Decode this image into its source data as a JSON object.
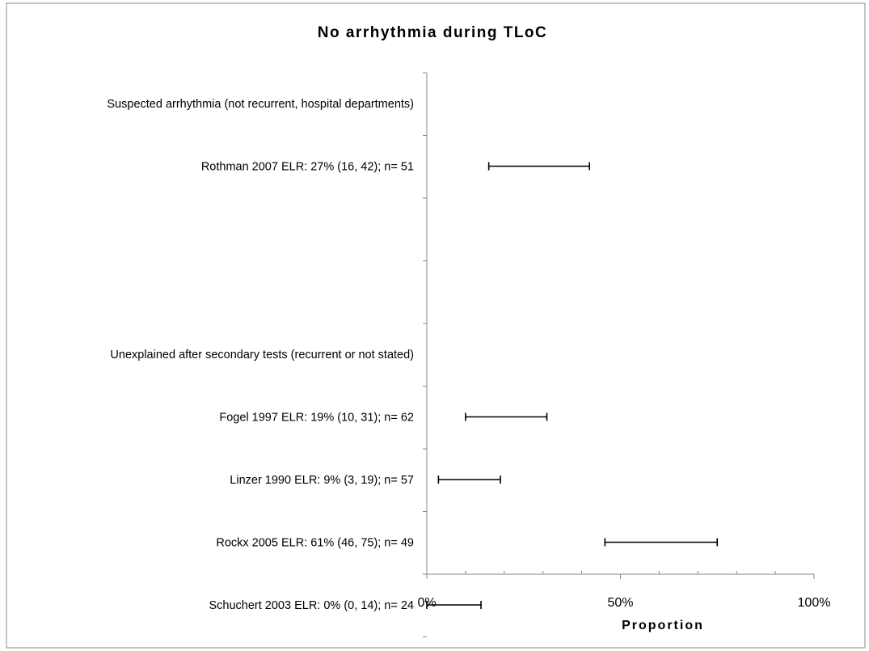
{
  "chart_data": {
    "type": "forest",
    "title": "No arrhythmia during TLoC",
    "xlabel": "Proportion",
    "xlim": [
      0,
      100
    ],
    "x_ticks": [
      0,
      50,
      100
    ],
    "x_tick_labels": [
      "0%",
      "50%",
      "100%"
    ],
    "grid": false,
    "rows": [
      {
        "label": "Suspected arrhythmia (not recurrent, hospital departments)",
        "is_header": true
      },
      {
        "label": "Rothman 2007 ELR: 27% (16, 42); n= 51",
        "estimate": 27,
        "lower": 16,
        "upper": 42
      },
      {
        "label": "",
        "is_header": true
      },
      {
        "label": "",
        "is_header": true
      },
      {
        "label": "Unexplained after secondary tests (recurrent or not stated)",
        "is_header": true
      },
      {
        "label": "Fogel 1997 ELR: 19% (10, 31); n= 62",
        "estimate": 19,
        "lower": 10,
        "upper": 31
      },
      {
        "label": "Linzer 1990 ELR: 9% (3, 19); n= 57",
        "estimate": 9,
        "lower": 3,
        "upper": 19
      },
      {
        "label": "Rockx 2005 ELR: 61% (46, 75); n= 49",
        "estimate": 61,
        "lower": 46,
        "upper": 75
      },
      {
        "label": "Schuchert 2003 ELR: 0% (0, 14); n= 24",
        "estimate": 0,
        "lower": 0,
        "upper": 14
      }
    ]
  }
}
